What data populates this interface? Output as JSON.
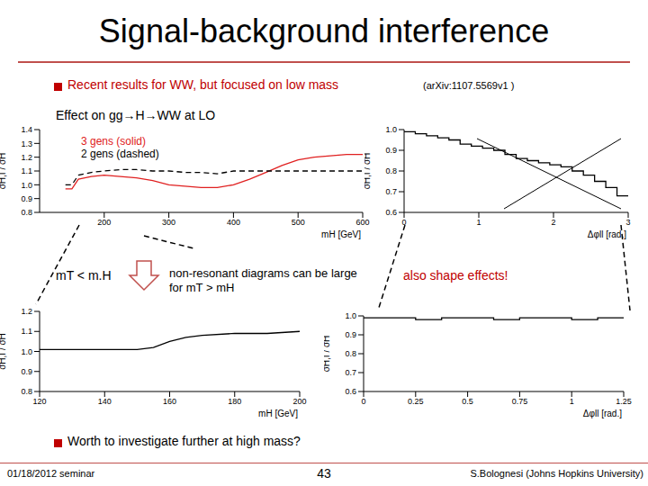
{
  "slide": {
    "title": "Signal-background interference",
    "bullet1": "Recent results for WW, but focused on low mass",
    "reference": "(arXiv:1107.5569v1 )",
    "subtitle": "Effect on gg→H→WW at LO",
    "note_left": "mT < m.H",
    "note_middle": "non-resonant diagrams can be large for mT > mH",
    "note_right": "also shape effects!",
    "bullet2": "Worth to investigate further at high mass?",
    "footer_left": "01/18/2012 seminar",
    "page": "43",
    "footer_right": "S.Bolognesi (Johns Hopkins University)"
  },
  "chart_data": [
    {
      "type": "line",
      "x_label": "mH [GeV]",
      "y_label": "σH,I / σH",
      "xlim": [
        100,
        600
      ],
      "xticks": [
        200,
        300,
        400,
        500,
        600
      ],
      "ylim": [
        0.8,
        1.4
      ],
      "yticks": [
        0.8,
        0.9,
        {
          "value": 1,
          "label": "1.0"
        },
        1.1,
        1.2,
        1.3,
        1.4
      ],
      "legend": "upper left",
      "x": [
        140,
        150,
        160,
        170,
        180,
        200,
        225,
        250,
        275,
        300,
        325,
        350,
        375,
        400,
        425,
        450,
        475,
        500,
        525,
        550,
        575,
        600
      ],
      "series": [
        {
          "name": "3 gens (solid)",
          "color": "#e02020",
          "line_style": "solid",
          "values": [
            0.97,
            0.97,
            1.04,
            1.05,
            1.06,
            1.07,
            1.06,
            1.05,
            1.03,
            1.0,
            0.99,
            0.98,
            0.98,
            1.0,
            1.04,
            1.09,
            1.14,
            1.18,
            1.2,
            1.21,
            1.22,
            1.22
          ]
        },
        {
          "name": "2 gens (dashed)",
          "color": "#000000",
          "line_style": "dashed",
          "values": [
            1.0,
            1.0,
            1.07,
            1.08,
            1.09,
            1.1,
            1.11,
            1.11,
            1.1,
            1.1,
            1.09,
            1.09,
            1.08,
            1.1,
            1.1,
            1.1,
            1.1,
            1.1,
            1.1,
            1.1,
            1.1,
            1.1
          ]
        }
      ]
    },
    {
      "type": "histogram",
      "x_label": "Δφll [rad.]",
      "y_label": "σH,I / σH",
      "color": "#000000",
      "xlim": [
        0,
        3
      ],
      "xticks": [
        0,
        1,
        2,
        3
      ],
      "ylim": [
        0.6,
        1.0
      ],
      "yticks": [
        0.6,
        0.7,
        0.8,
        0.9,
        {
          "value": 1,
          "label": "1.0"
        }
      ],
      "bins": [
        0,
        0.15,
        0.3,
        0.45,
        0.6,
        0.75,
        0.9,
        1.05,
        1.2,
        1.35,
        1.5,
        1.65,
        1.8,
        1.95,
        2.1,
        2.25,
        2.4,
        2.55,
        2.7,
        2.85,
        3.0
      ],
      "values": [
        0.99,
        0.98,
        0.97,
        0.96,
        0.95,
        0.93,
        0.92,
        0.91,
        0.9,
        0.88,
        0.86,
        0.85,
        0.84,
        0.83,
        0.82,
        0.8,
        0.78,
        0.75,
        0.72,
        0.68
      ]
    },
    {
      "type": "line",
      "x_label": "mH [GeV]",
      "y_label": "σH,I / σH",
      "xlim": [
        120,
        200
      ],
      "xticks": [
        120,
        140,
        160,
        180,
        200
      ],
      "ylim": [
        0.8,
        1.2
      ],
      "yticks": [
        0.8,
        0.9,
        {
          "value": 1,
          "label": "1.0"
        },
        1.1,
        1.2
      ],
      "x": [
        120,
        130,
        140,
        150,
        155,
        160,
        165,
        170,
        180,
        190,
        200
      ],
      "series": [
        {
          "color": "#000000",
          "line_style": "solid",
          "values": [
            1.01,
            1.01,
            1.01,
            1.01,
            1.02,
            1.05,
            1.07,
            1.08,
            1.09,
            1.09,
            1.1
          ]
        }
      ]
    },
    {
      "type": "histogram",
      "x_label": "Δφll [rad.]",
      "y_label": "σH,I / σH",
      "color": "#000000",
      "xlim": [
        0,
        1.25
      ],
      "xticks": [
        0,
        0.25,
        0.5,
        0.75,
        1,
        1.25
      ],
      "ylim": [
        0.6,
        1.0
      ],
      "yticks": [
        0.6,
        0.7,
        0.8,
        0.9,
        {
          "value": 1,
          "label": "1.0"
        }
      ],
      "bins": [
        0,
        0.125,
        0.25,
        0.375,
        0.5,
        0.625,
        0.75,
        0.875,
        1.0,
        1.125,
        1.25
      ],
      "values": [
        0.99,
        0.99,
        0.98,
        0.99,
        0.99,
        0.98,
        0.99,
        0.99,
        0.98,
        0.99
      ]
    }
  ]
}
